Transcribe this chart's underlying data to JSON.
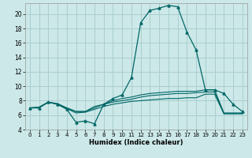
{
  "xlabel": "Humidex (Indice chaleur)",
  "bg_color": "#cce8e8",
  "grid_color": "#aacece",
  "line_color": "#006666",
  "xlim": [
    -0.5,
    23.5
  ],
  "ylim": [
    4,
    21.5
  ],
  "yticks": [
    4,
    6,
    8,
    10,
    12,
    14,
    16,
    18,
    20
  ],
  "xticks": [
    0,
    1,
    2,
    3,
    4,
    5,
    6,
    7,
    8,
    9,
    10,
    11,
    12,
    13,
    14,
    15,
    16,
    17,
    18,
    19,
    20,
    21,
    22,
    23
  ],
  "series": [
    [
      7.0,
      7.0,
      7.8,
      7.5,
      6.8,
      5.0,
      5.2,
      4.8,
      7.5,
      8.3,
      8.8,
      11.2,
      18.8,
      20.5,
      20.8,
      21.2,
      21.0,
      17.5,
      15.0,
      9.5,
      9.5,
      9.0,
      7.5,
      6.5
    ],
    [
      7.0,
      7.1,
      7.8,
      7.6,
      7.0,
      6.5,
      6.5,
      7.2,
      7.5,
      8.0,
      8.3,
      8.5,
      8.8,
      9.0,
      9.1,
      9.2,
      9.3,
      9.3,
      9.3,
      9.5,
      9.5,
      6.3,
      6.3,
      6.3
    ],
    [
      7.0,
      7.1,
      7.8,
      7.5,
      7.0,
      6.5,
      6.5,
      7.0,
      7.5,
      7.8,
      8.0,
      8.2,
      8.5,
      8.7,
      8.8,
      8.9,
      9.0,
      9.0,
      9.1,
      9.2,
      9.2,
      6.2,
      6.2,
      6.2
    ],
    [
      7.0,
      7.0,
      7.8,
      7.5,
      6.9,
      6.3,
      6.4,
      6.8,
      7.2,
      7.5,
      7.7,
      7.9,
      8.0,
      8.1,
      8.2,
      8.3,
      8.3,
      8.4,
      8.4,
      8.9,
      8.9,
      6.2,
      6.2,
      6.2
    ]
  ],
  "markers": [
    1,
    0,
    0,
    0
  ]
}
